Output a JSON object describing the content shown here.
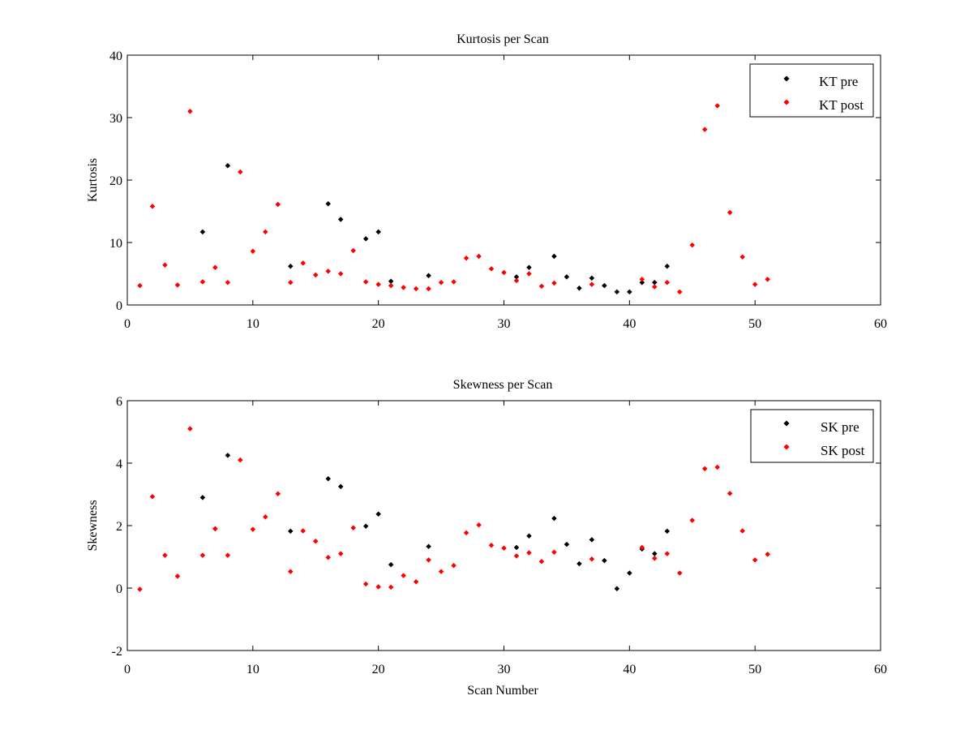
{
  "colors": {
    "pre": "#000000",
    "post": "#ff0000",
    "axes": "#000000",
    "background": "#ffffff"
  },
  "chart_data": [
    {
      "type": "scatter",
      "title": "Kurtosis per Scan",
      "xlabel": "",
      "ylabel": "Kurtosis",
      "xlim": [
        0,
        60
      ],
      "ylim": [
        0,
        40
      ],
      "xticks": [
        0,
        10,
        20,
        30,
        40,
        50,
        60
      ],
      "yticks": [
        0,
        10,
        20,
        30,
        40
      ],
      "grid": false,
      "legend_position": "top-right",
      "series": [
        {
          "name": "KT pre",
          "color": "#000000",
          "points": [
            [
              6,
              11.7
            ],
            [
              8,
              22.3
            ],
            [
              13,
              6.2
            ],
            [
              16,
              16.2
            ],
            [
              17,
              13.7
            ],
            [
              19,
              10.6
            ],
            [
              20,
              11.7
            ],
            [
              21,
              3.8
            ],
            [
              24,
              4.7
            ],
            [
              31,
              4.5
            ],
            [
              32,
              6.0
            ],
            [
              34,
              7.8
            ],
            [
              35,
              4.5
            ],
            [
              36,
              2.7
            ],
            [
              37,
              4.3
            ],
            [
              38,
              3.1
            ],
            [
              39,
              2.1
            ],
            [
              40,
              2.1
            ],
            [
              41,
              3.6
            ],
            [
              42,
              3.6
            ],
            [
              43,
              6.2
            ]
          ]
        },
        {
          "name": "KT post",
          "color": "#ff0000",
          "points": [
            [
              1,
              3.1
            ],
            [
              2,
              15.8
            ],
            [
              3,
              6.4
            ],
            [
              4,
              3.2
            ],
            [
              5,
              31.0
            ],
            [
              6,
              3.7
            ],
            [
              7,
              6.0
            ],
            [
              8,
              3.6
            ],
            [
              9,
              21.3
            ],
            [
              10,
              8.6
            ],
            [
              11,
              11.7
            ],
            [
              12,
              16.1
            ],
            [
              13,
              3.6
            ],
            [
              14,
              6.7
            ],
            [
              15,
              4.8
            ],
            [
              16,
              5.4
            ],
            [
              17,
              5.0
            ],
            [
              18,
              8.7
            ],
            [
              19,
              3.7
            ],
            [
              20,
              3.3
            ],
            [
              21,
              3.1
            ],
            [
              22,
              2.8
            ],
            [
              23,
              2.6
            ],
            [
              24,
              2.6
            ],
            [
              25,
              3.6
            ],
            [
              26,
              3.7
            ],
            [
              27,
              7.5
            ],
            [
              28,
              7.8
            ],
            [
              29,
              5.8
            ],
            [
              30,
              5.2
            ],
            [
              31,
              3.9
            ],
            [
              32,
              5.0
            ],
            [
              33,
              3.0
            ],
            [
              34,
              3.5
            ],
            [
              37,
              3.3
            ],
            [
              41,
              4.1
            ],
            [
              42,
              2.9
            ],
            [
              43,
              3.6
            ],
            [
              44,
              2.1
            ],
            [
              45,
              9.6
            ],
            [
              46,
              28.1
            ],
            [
              47,
              31.9
            ],
            [
              48,
              14.8
            ],
            [
              49,
              7.7
            ],
            [
              50,
              3.3
            ],
            [
              51,
              4.1
            ]
          ]
        }
      ]
    },
    {
      "type": "scatter",
      "title": "Skewness per Scan",
      "xlabel": "Scan Number",
      "ylabel": "Skewness",
      "xlim": [
        0,
        60
      ],
      "ylim": [
        -2,
        6
      ],
      "xticks": [
        0,
        10,
        20,
        30,
        40,
        50,
        60
      ],
      "yticks": [
        -2,
        0,
        2,
        4,
        6
      ],
      "grid": false,
      "legend_position": "top-right",
      "series": [
        {
          "name": "SK pre",
          "color": "#000000",
          "points": [
            [
              6,
              2.9
            ],
            [
              7,
              1.9
            ],
            [
              8,
              4.25
            ],
            [
              13,
              1.82
            ],
            [
              16,
              3.5
            ],
            [
              17,
              3.25
            ],
            [
              19,
              1.98
            ],
            [
              20,
              2.37
            ],
            [
              21,
              0.75
            ],
            [
              24,
              1.33
            ],
            [
              31,
              1.3
            ],
            [
              32,
              1.67
            ],
            [
              34,
              2.23
            ],
            [
              35,
              1.4
            ],
            [
              36,
              0.78
            ],
            [
              37,
              1.55
            ],
            [
              38,
              0.88
            ],
            [
              39,
              -0.02
            ],
            [
              40,
              0.48
            ],
            [
              41,
              1.25
            ],
            [
              42,
              1.1
            ],
            [
              43,
              1.82
            ]
          ]
        },
        {
          "name": "SK post",
          "color": "#ff0000",
          "points": [
            [
              1,
              -0.04
            ],
            [
              2,
              2.93
            ],
            [
              3,
              1.05
            ],
            [
              4,
              0.38
            ],
            [
              5,
              5.1
            ],
            [
              6,
              1.05
            ],
            [
              7,
              1.9
            ],
            [
              8,
              1.05
            ],
            [
              9,
              4.1
            ],
            [
              10,
              1.88
            ],
            [
              11,
              2.28
            ],
            [
              12,
              3.02
            ],
            [
              13,
              0.53
            ],
            [
              14,
              1.83
            ],
            [
              15,
              1.5
            ],
            [
              16,
              0.98
            ],
            [
              17,
              1.1
            ],
            [
              18,
              1.93
            ],
            [
              19,
              0.13
            ],
            [
              20,
              0.04
            ],
            [
              21,
              0.03
            ],
            [
              22,
              0.4
            ],
            [
              23,
              0.2
            ],
            [
              24,
              0.9
            ],
            [
              25,
              0.53
            ],
            [
              26,
              0.72
            ],
            [
              27,
              1.77
            ],
            [
              28,
              2.02
            ],
            [
              29,
              1.37
            ],
            [
              30,
              1.28
            ],
            [
              31,
              1.03
            ],
            [
              32,
              1.13
            ],
            [
              33,
              0.85
            ],
            [
              34,
              1.15
            ],
            [
              37,
              0.93
            ],
            [
              41,
              1.3
            ],
            [
              42,
              0.95
            ],
            [
              43,
              1.1
            ],
            [
              44,
              0.48
            ],
            [
              45,
              2.17
            ],
            [
              46,
              3.82
            ],
            [
              47,
              3.87
            ],
            [
              48,
              3.03
            ],
            [
              49,
              1.83
            ],
            [
              50,
              0.9
            ],
            [
              51,
              1.08
            ]
          ]
        }
      ]
    }
  ]
}
